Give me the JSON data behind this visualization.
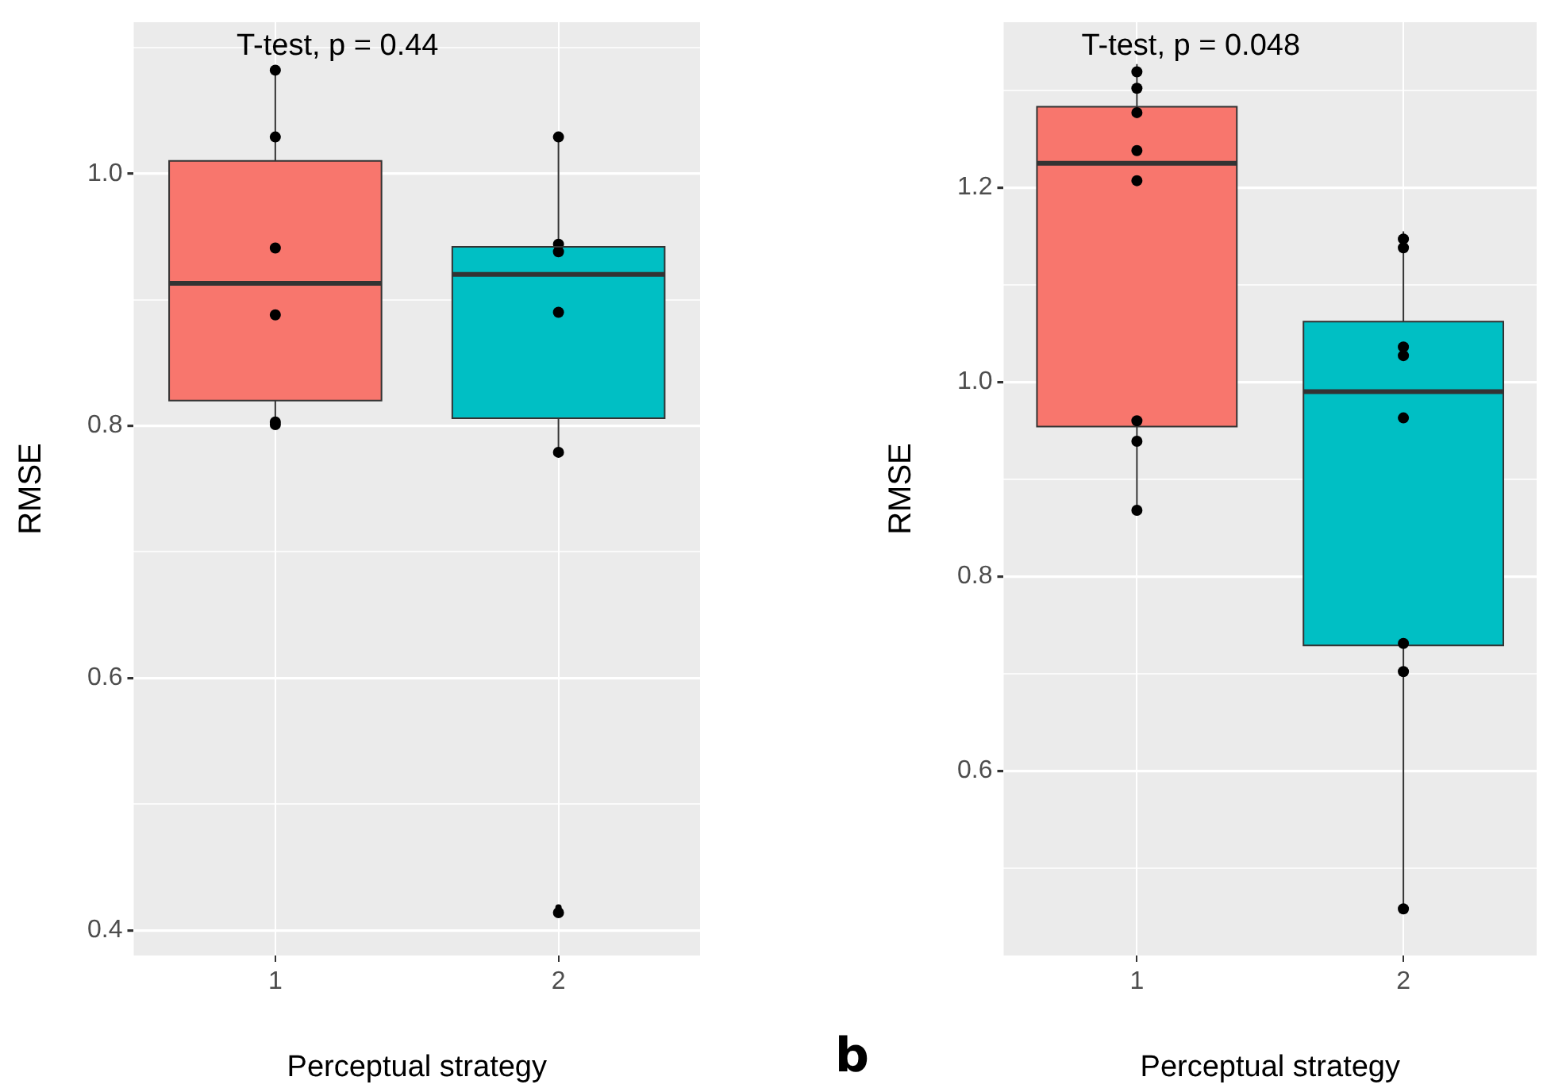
{
  "chart_data": [
    {
      "type": "box",
      "categories": [
        "1",
        "2"
      ],
      "xlabel": "Perceptual strategy",
      "ylabel": "RMSE",
      "ylim": [
        0.38,
        1.12
      ],
      "yticks": [
        0.4,
        {
          "value": 0.5,
          "label": null
        },
        0.6,
        {
          "value": 0.7,
          "label": null
        },
        0.8,
        {
          "value": 0.9,
          "label": null
        },
        {
          "value": 1.0,
          "label": "1.0"
        },
        {
          "value": 1.1,
          "label": null
        }
      ],
      "grid": true,
      "legend": false,
      "annotations": [
        "T-test, p = 0.44"
      ],
      "series": [
        {
          "type": "box",
          "colors": [
            "#f8766d",
            "#00bfc4"
          ],
          "boxes": [
            {
              "low": 0.8,
              "q1": 0.82,
              "median": 0.913,
              "q3": 1.01,
              "high": 1.08
            },
            {
              "low": 0.776,
              "q1": 0.806,
              "median": 0.92,
              "q3": 0.942,
              "high": 1.033,
              "outliers": [
                0.418
              ]
            }
          ]
        },
        {
          "type": "scatter",
          "color": "#000000",
          "marker": "circle",
          "x": [
            "1",
            "1",
            "1",
            "1",
            "1",
            "1",
            "2",
            "2",
            "2",
            "2",
            "2",
            "2"
          ],
          "values": [
            1.082,
            1.029,
            0.941,
            0.888,
            0.803,
            0.801,
            1.029,
            0.944,
            0.938,
            0.89,
            0.779,
            0.414
          ]
        }
      ]
    },
    {
      "type": "box",
      "categories": [
        "1",
        "2"
      ],
      "xlabel": "Perceptual strategy",
      "ylabel": "RMSE",
      "ylim": [
        0.41,
        1.37
      ],
      "yticks": [
        {
          "value": 0.5,
          "label": null
        },
        0.6,
        {
          "value": 0.7,
          "label": null
        },
        0.8,
        {
          "value": 0.9,
          "label": null
        },
        {
          "value": 1.0,
          "label": "1.0"
        },
        {
          "value": 1.1,
          "label": null
        },
        1.2,
        {
          "value": 1.3,
          "label": null
        }
      ],
      "grid": true,
      "legend": false,
      "annotations": [
        "T-test, p = 0.048",
        "b"
      ],
      "series": [
        {
          "type": "box",
          "colors": [
            "#f8766d",
            "#00bfc4"
          ],
          "boxes": [
            {
              "low": 0.868,
              "q1": 0.954,
              "median": 1.225,
              "q3": 1.283,
              "high": 1.327
            },
            {
              "low": 0.456,
              "q1": 0.729,
              "median": 0.99,
              "q3": 1.062,
              "high": 1.155
            }
          ]
        },
        {
          "type": "scatter",
          "color": "#000000",
          "marker": "circle",
          "x": [
            "1",
            "1",
            "1",
            "1",
            "1",
            "1",
            "1",
            "1",
            "2",
            "2",
            "2",
            "2",
            "2",
            "2",
            "2",
            "2"
          ],
          "values": [
            1.319,
            1.302,
            1.277,
            1.238,
            1.207,
            0.96,
            0.939,
            0.868,
            1.147,
            1.138,
            1.036,
            1.027,
            0.963,
            0.731,
            0.702,
            0.458
          ]
        }
      ]
    }
  ]
}
